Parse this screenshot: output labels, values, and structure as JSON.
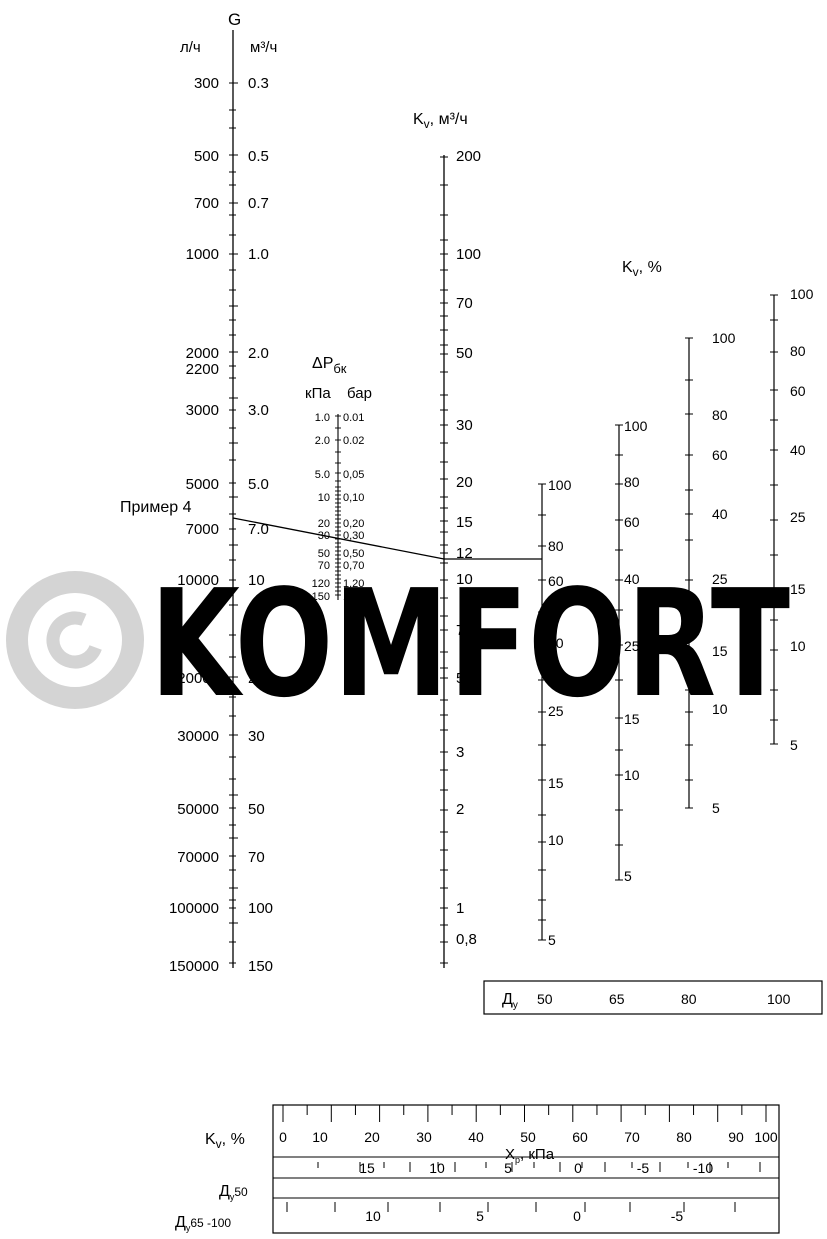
{
  "watermark": {
    "text": "KOMFORT",
    "color": "#d4d4d4"
  },
  "example_label": "Пример 4",
  "g_axis": {
    "title": "G",
    "unit_left": "л/ч",
    "unit_right": "м³/ч",
    "labels": [
      {
        "l": "300",
        "m": "0.3"
      },
      {
        "l": "500",
        "m": "0.5"
      },
      {
        "l": "700",
        "m": "0.7"
      },
      {
        "l": "1000",
        "m": "1.0"
      },
      {
        "l": "2000",
        "m": "2.0"
      },
      {
        "l": "2200",
        "m": ""
      },
      {
        "l": "3000",
        "m": "3.0"
      },
      {
        "l": "5000",
        "m": "5.0"
      },
      {
        "l": "7000",
        "m": "7.0"
      },
      {
        "l": "10000",
        "m": "10"
      },
      {
        "l": "20000",
        "m": "20"
      },
      {
        "l": "30000",
        "m": "30"
      },
      {
        "l": "50000",
        "m": "50"
      },
      {
        "l": "70000",
        "m": "70"
      },
      {
        "l": "100000",
        "m": "100"
      },
      {
        "l": "150000",
        "m": "150"
      }
    ]
  },
  "dp_axis": {
    "title": "ΔP",
    "title_sub": "бк",
    "unit_left": "кПа",
    "unit_right": "бар",
    "labels": [
      {
        "k": "1.0",
        "b": "0.01"
      },
      {
        "k": "2.0",
        "b": "0.02"
      },
      {
        "k": "5.0",
        "b": "0,05"
      },
      {
        "k": "10",
        "b": "0,10"
      },
      {
        "k": "20",
        "b": "0,20"
      },
      {
        "k": "30",
        "b": "0,30"
      },
      {
        "k": "50",
        "b": "0,50"
      },
      {
        "k": "70",
        "b": "0,70"
      },
      {
        "k": "120",
        "b": "1,20"
      },
      {
        "k": "150",
        "b": "1,50"
      }
    ]
  },
  "kv_axis": {
    "title": "K",
    "title_sub": "v",
    "title_unit": ", м³/ч",
    "labels": [
      "200",
      "100",
      "70",
      "50",
      "30",
      "20",
      "15",
      "12",
      "10",
      "7",
      "5",
      "3",
      "2",
      "1",
      "0,8"
    ]
  },
  "kv_pct": {
    "title": "K",
    "title_sub": "v",
    "title_unit": ", %",
    "scale50": [
      "100",
      "80",
      "60",
      "40",
      "25",
      "15",
      "10",
      "5"
    ],
    "scale65": [
      "100",
      "80",
      "60",
      "40",
      "25",
      "15",
      "10",
      "5"
    ],
    "scale80": [
      "100",
      "80",
      "60",
      "40",
      "25",
      "15",
      "10",
      "5"
    ],
    "scale100": [
      "100",
      "80",
      "60",
      "40",
      "25",
      "15",
      "10",
      "5"
    ]
  },
  "dy_box": {
    "label": "Д",
    "label_sub": "у",
    "values": [
      "50",
      "65",
      "80",
      "100"
    ]
  },
  "bottom": {
    "kv_label": "K",
    "kv_sub": "v",
    "kv_unit": ", %",
    "scale": [
      "0",
      "10",
      "20",
      "30",
      "40",
      "50",
      "60",
      "70",
      "80",
      "90",
      "100"
    ],
    "xp_label": "X",
    "xp_sub": "р",
    "xp_unit": ", кПа",
    "dy50_label": "Д",
    "dy50_sub": "у",
    "dy50_suffix": "50",
    "dy50_values": [
      "15",
      "10",
      "5",
      "0",
      "-5",
      "-10"
    ],
    "dy65_label": "Д",
    "dy65_sub": "у",
    "dy65_suffix": "65 -100",
    "dy65_values": [
      "10",
      "5",
      "0",
      "-5"
    ]
  }
}
